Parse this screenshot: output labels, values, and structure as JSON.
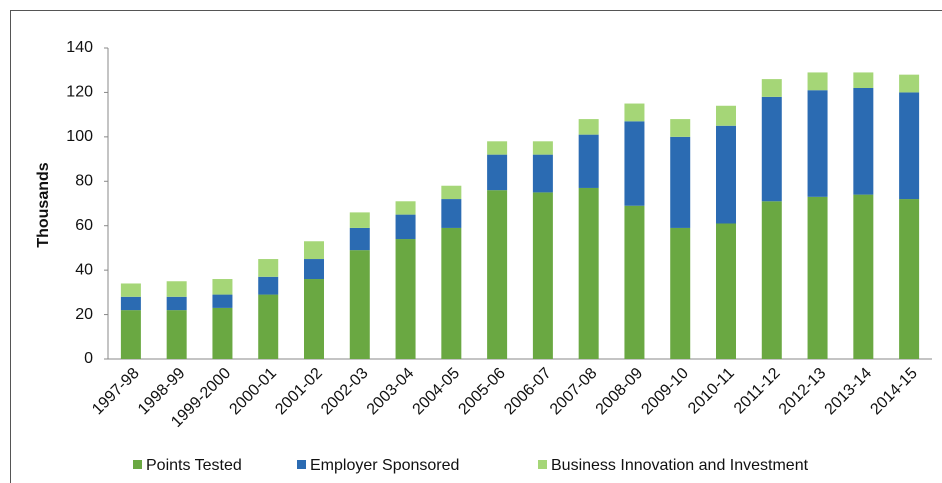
{
  "chart_data": {
    "type": "stacked_bar",
    "y_label": "Thousands",
    "categories": [
      "1997-98",
      "1998-99",
      "1999-2000",
      "2000-01",
      "2001-02",
      "2002-03",
      "2003-04",
      "2004-05",
      "2005-06",
      "2006-07",
      "2007-08",
      "2008-09",
      "2009-10",
      "2010-11",
      "2011-12",
      "2012-13",
      "2013-14",
      "2014-15"
    ],
    "series": [
      {
        "name": "Points Tested",
        "color": "#6aa842",
        "values": [
          22,
          22,
          23,
          29,
          36,
          49,
          54,
          59,
          76,
          75,
          77,
          69,
          59,
          61,
          71,
          73,
          74,
          72
        ]
      },
      {
        "name": "Employer Sponsored",
        "color": "#2b6bb2",
        "values": [
          6,
          6,
          6,
          8,
          9,
          10,
          11,
          13,
          16,
          17,
          24,
          38,
          41,
          44,
          47,
          48,
          48,
          48
        ]
      },
      {
        "name": "Business Innovation and Investment",
        "color": "#a5d677",
        "values": [
          6,
          7,
          7,
          8,
          8,
          7,
          6,
          6,
          6,
          6,
          7,
          8,
          8,
          9,
          8,
          8,
          7,
          8
        ]
      }
    ],
    "ylim": [
      0,
      140
    ],
    "yticks": [
      0,
      20,
      40,
      60,
      80,
      100,
      120,
      140
    ],
    "grid": false,
    "legend": "bottom"
  }
}
